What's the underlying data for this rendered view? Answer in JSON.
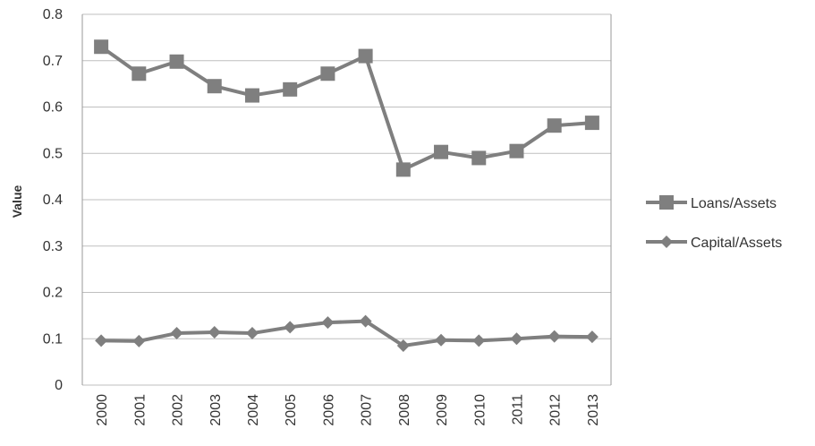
{
  "chart_data": {
    "type": "line",
    "title": "",
    "xlabel": "",
    "ylabel": "Value",
    "ylim": [
      0,
      0.8
    ],
    "y_ticks": [
      "0",
      "0.1",
      "0.2",
      "0.3",
      "0.4",
      "0.5",
      "0.6",
      "0.7",
      "0.8"
    ],
    "grid": true,
    "legend_position": "right",
    "categories": [
      "2000",
      "2001",
      "2002",
      "2003",
      "2004",
      "2005",
      "2006",
      "2007",
      "2008",
      "2009",
      "2010",
      "2011",
      "2012",
      "2013"
    ],
    "series": [
      {
        "name": "Loans/Assets",
        "marker": "square",
        "color": "#7f7f7f",
        "values": [
          0.73,
          0.672,
          0.698,
          0.645,
          0.625,
          0.638,
          0.672,
          0.71,
          0.465,
          0.503,
          0.49,
          0.505,
          0.56,
          0.566
        ]
      },
      {
        "name": "Capital/Assets",
        "marker": "diamond",
        "color": "#7f7f7f",
        "values": [
          0.096,
          0.095,
          0.112,
          0.114,
          0.112,
          0.125,
          0.135,
          0.138,
          0.085,
          0.097,
          0.096,
          0.1,
          0.105,
          0.104
        ]
      }
    ]
  }
}
